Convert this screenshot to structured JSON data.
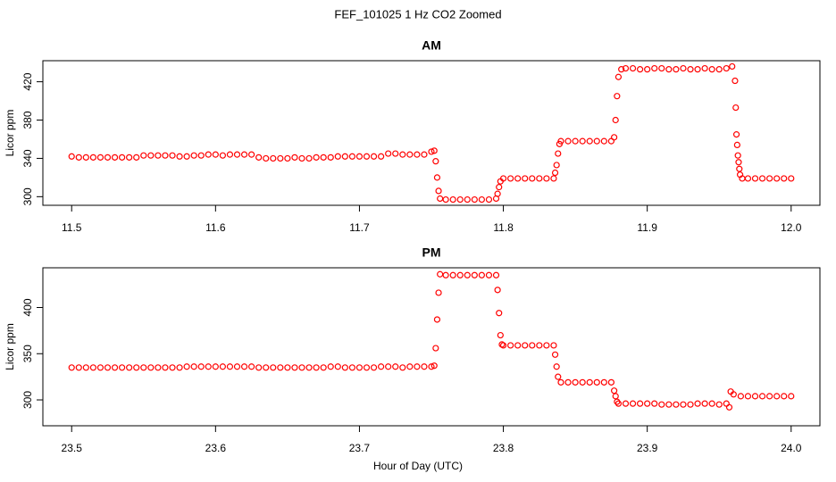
{
  "title": "FEF_101025  1 Hz CO2 Zoomed",
  "x_label": "Hour of Day (UTC)",
  "chart_data": [
    {
      "type": "scatter",
      "title": "AM",
      "y_label": "Licor ppm",
      "color": "#ff0000",
      "xlim": [
        11.48,
        12.02
      ],
      "ylim": [
        291,
        442
      ],
      "xticks": [
        11.5,
        11.6,
        11.7,
        11.8,
        11.9,
        {
          "value": 12,
          "label": "12.0"
        }
      ],
      "yticks": [
        300,
        340,
        380,
        420
      ],
      "x": [
        11.5,
        11.505,
        11.51,
        11.515,
        11.52,
        11.525,
        11.53,
        11.535,
        11.54,
        11.545,
        11.55,
        11.555,
        11.56,
        11.565,
        11.57,
        11.575,
        11.58,
        11.585,
        11.59,
        11.595,
        11.6,
        11.605,
        11.61,
        11.615,
        11.62,
        11.625,
        11.63,
        11.635,
        11.64,
        11.645,
        11.65,
        11.655,
        11.66,
        11.665,
        11.67,
        11.675,
        11.68,
        11.685,
        11.69,
        11.695,
        11.7,
        11.705,
        11.71,
        11.715,
        11.72,
        11.725,
        11.73,
        11.735,
        11.74,
        11.745,
        11.75,
        11.752,
        11.753,
        11.754,
        11.755,
        11.756,
        11.76,
        11.765,
        11.77,
        11.775,
        11.78,
        11.785,
        11.79,
        11.795,
        11.796,
        11.797,
        11.798,
        11.8,
        11.805,
        11.81,
        11.815,
        11.82,
        11.825,
        11.83,
        11.835,
        11.836,
        11.837,
        11.838,
        11.839,
        11.84,
        11.845,
        11.85,
        11.855,
        11.86,
        11.865,
        11.87,
        11.875,
        11.877,
        11.878,
        11.879,
        11.88,
        11.882,
        11.885,
        11.89,
        11.895,
        11.9,
        11.905,
        11.91,
        11.915,
        11.92,
        11.925,
        11.93,
        11.935,
        11.94,
        11.945,
        11.95,
        11.955,
        11.959,
        11.961,
        11.9615,
        11.962,
        11.9625,
        11.963,
        11.9635,
        11.964,
        11.9645,
        11.966,
        11.97,
        11.975,
        11.98,
        11.985,
        11.99,
        11.995,
        12.0
      ],
      "values": [
        342,
        341,
        341,
        341,
        341,
        341,
        341,
        341,
        341,
        341,
        343,
        343,
        343,
        343,
        343,
        342,
        342,
        343,
        343,
        344,
        344,
        343,
        344,
        344,
        344,
        344,
        341,
        340,
        340,
        340,
        340,
        341,
        340,
        340,
        341,
        341,
        341,
        342,
        342,
        342,
        342,
        342,
        342,
        342,
        345,
        345,
        344,
        344,
        344,
        344,
        347,
        348,
        337,
        320,
        306,
        298,
        297,
        297,
        297,
        297,
        297,
        297,
        297,
        298,
        303,
        310,
        316,
        319,
        319,
        319,
        319,
        319,
        319,
        319,
        319,
        325,
        333,
        345,
        355,
        358,
        358,
        358,
        358,
        358,
        358,
        358,
        358,
        362,
        380,
        405,
        425,
        433,
        434,
        434,
        433,
        433,
        434,
        434,
        433,
        433,
        434,
        433,
        433,
        434,
        433,
        433,
        434,
        436,
        421,
        393,
        365,
        354,
        343,
        336,
        329,
        323,
        319,
        319,
        319,
        319,
        319,
        319,
        319,
        319
      ]
    },
    {
      "type": "scatter",
      "title": "PM",
      "y_label": "Licor ppm",
      "color": "#ff0000",
      "xlim": [
        23.48,
        24.02
      ],
      "ylim": [
        272,
        443
      ],
      "xticks": [
        23.5,
        23.6,
        23.7,
        23.8,
        23.9,
        {
          "value": 24,
          "label": "24.0"
        }
      ],
      "yticks": [
        300,
        350,
        400
      ],
      "x": [
        23.5,
        23.505,
        23.51,
        23.515,
        23.52,
        23.525,
        23.53,
        23.535,
        23.54,
        23.545,
        23.55,
        23.555,
        23.56,
        23.565,
        23.57,
        23.575,
        23.58,
        23.585,
        23.59,
        23.595,
        23.6,
        23.605,
        23.61,
        23.615,
        23.62,
        23.625,
        23.63,
        23.635,
        23.64,
        23.645,
        23.65,
        23.655,
        23.66,
        23.665,
        23.67,
        23.675,
        23.68,
        23.685,
        23.69,
        23.695,
        23.7,
        23.705,
        23.71,
        23.715,
        23.72,
        23.725,
        23.73,
        23.735,
        23.74,
        23.745,
        23.75,
        23.752,
        23.753,
        23.754,
        23.755,
        23.756,
        23.76,
        23.765,
        23.77,
        23.775,
        23.78,
        23.785,
        23.79,
        23.795,
        23.796,
        23.797,
        23.798,
        23.799,
        23.8,
        23.805,
        23.81,
        23.815,
        23.82,
        23.825,
        23.83,
        23.835,
        23.836,
        23.837,
        23.838,
        23.84,
        23.845,
        23.85,
        23.855,
        23.86,
        23.865,
        23.87,
        23.875,
        23.877,
        23.878,
        23.879,
        23.88,
        23.885,
        23.89,
        23.895,
        23.9,
        23.905,
        23.91,
        23.915,
        23.92,
        23.925,
        23.93,
        23.935,
        23.94,
        23.945,
        23.95,
        23.955,
        23.957,
        23.958,
        23.96,
        23.965,
        23.97,
        23.975,
        23.98,
        23.985,
        23.99,
        23.995,
        24.0
      ],
      "values": [
        335,
        335,
        335,
        335,
        335,
        335,
        335,
        335,
        335,
        335,
        335,
        335,
        335,
        335,
        335,
        335,
        336,
        336,
        336,
        336,
        336,
        336,
        336,
        336,
        336,
        336,
        335,
        335,
        335,
        335,
        335,
        335,
        335,
        335,
        335,
        335,
        336,
        336,
        335,
        335,
        335,
        335,
        335,
        336,
        336,
        336,
        335,
        336,
        336,
        336,
        336,
        337,
        356,
        387,
        416,
        436,
        435,
        435,
        435,
        435,
        435,
        435,
        435,
        435,
        419,
        394,
        370,
        360,
        359,
        359,
        359,
        359,
        359,
        359,
        359,
        359,
        349,
        336,
        325,
        319,
        319,
        319,
        319,
        319,
        319,
        319,
        319,
        310,
        304,
        298,
        296,
        296,
        296,
        296,
        296,
        296,
        295,
        295,
        295,
        295,
        295,
        296,
        296,
        296,
        295,
        296,
        292,
        309,
        306,
        304,
        304,
        304,
        304,
        304,
        304,
        304,
        304
      ]
    }
  ]
}
